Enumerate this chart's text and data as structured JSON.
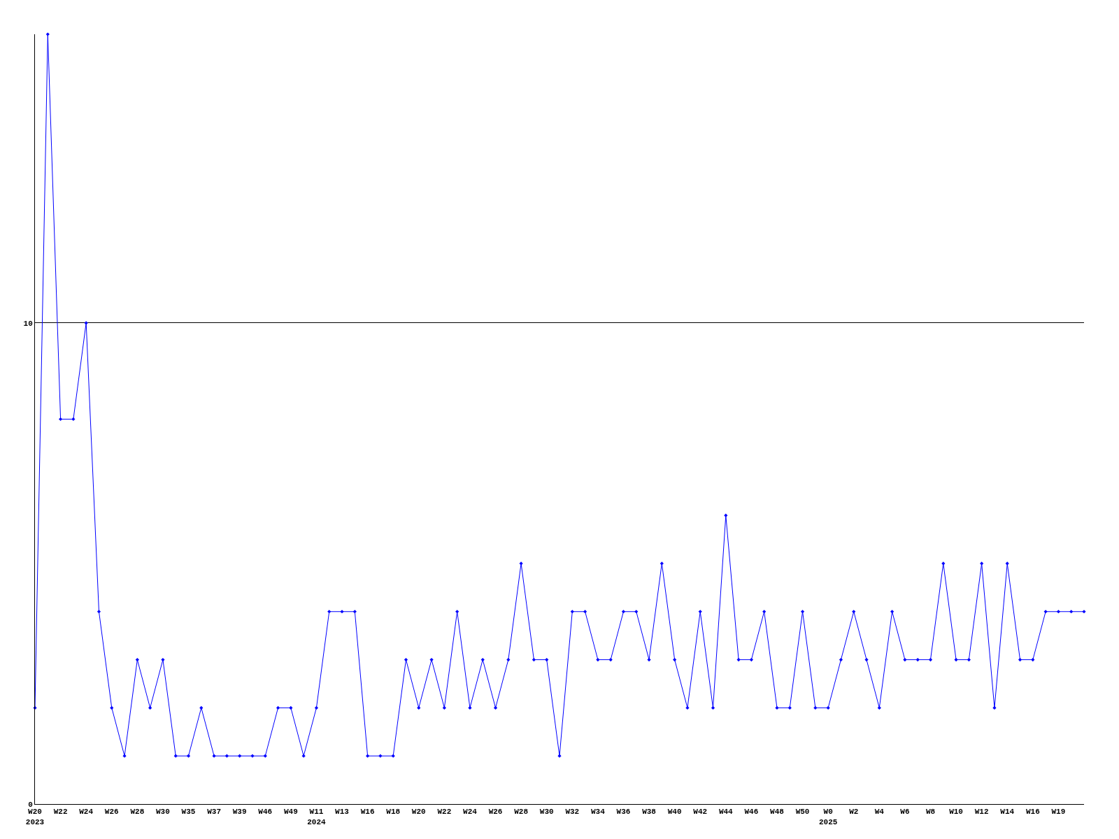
{
  "chart_data": {
    "type": "line",
    "categories": [
      "W20\n2023",
      null,
      "W22",
      null,
      "W24",
      null,
      "W26",
      null,
      "W28",
      null,
      "W30",
      null,
      "W35",
      null,
      "W37",
      null,
      "W39",
      null,
      "W46",
      null,
      "W49",
      null,
      "W11\n2024",
      null,
      "W13",
      null,
      "W16",
      null,
      "W18",
      null,
      "W20",
      null,
      "W22",
      null,
      "W24",
      null,
      "W26",
      null,
      "W28",
      null,
      "W30",
      null,
      "W32",
      null,
      "W34",
      null,
      "W36",
      null,
      "W38",
      null,
      "W40",
      null,
      "W42",
      null,
      "W44",
      null,
      "W46",
      null,
      "W48",
      null,
      "W50",
      null,
      "W0\n2025",
      null,
      "W2",
      null,
      "W4",
      null,
      "W6",
      null,
      "W8",
      null,
      "W10",
      null,
      "W12",
      null,
      "W14",
      null,
      "W16",
      null,
      "W19",
      null,
      null
    ],
    "series": [
      {
        "color": "#0000ff",
        "values": [
          2,
          16,
          8,
          8,
          10,
          4,
          2,
          1,
          3,
          2,
          3,
          1,
          1,
          2,
          1,
          1,
          1,
          1,
          1,
          2,
          2,
          1,
          2,
          4,
          4,
          4,
          1,
          1,
          1,
          3,
          2,
          3,
          2,
          4,
          2,
          3,
          2,
          3,
          5,
          3,
          3,
          1,
          4,
          4,
          3,
          3,
          4,
          4,
          3,
          5,
          3,
          2,
          4,
          2,
          6,
          3,
          3,
          4,
          2,
          2,
          4,
          2,
          2,
          3,
          4,
          3,
          2,
          4,
          3,
          3,
          3,
          5,
          3,
          3,
          5,
          2,
          5,
          3,
          3,
          4,
          4,
          4,
          4
        ]
      }
    ],
    "ylim": [
      0,
      16
    ],
    "yticks": [
      0,
      10
    ],
    "grid": "y",
    "marker": "diamond",
    "line_style": "solid"
  }
}
